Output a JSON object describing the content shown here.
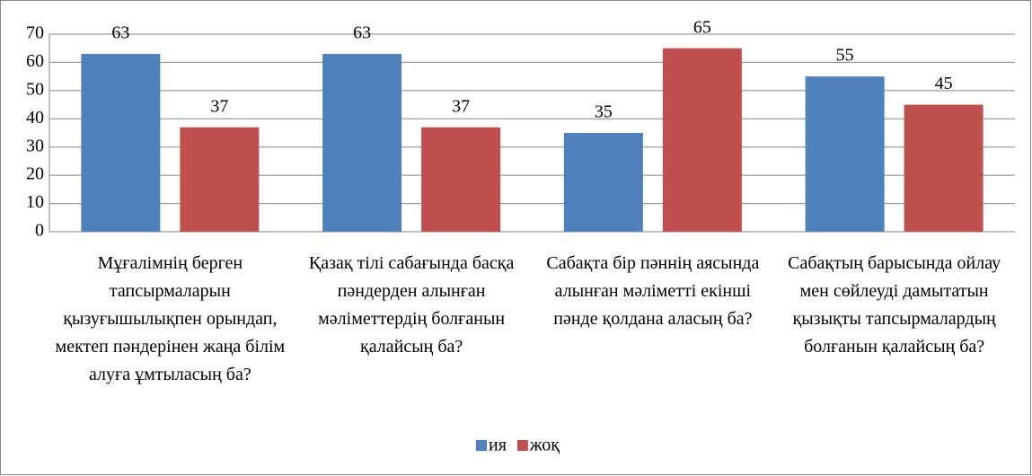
{
  "chart_data": {
    "type": "bar",
    "categories": [
      "Мұғалімнің берген тапсырмаларын қызуғышылықпен орындап, мектеп пәндерінен жаңа білім алуға ұмтыласың ба?",
      "Қазақ тілі сабағында басқа пәндерден алынған мәліметтердің болғанын қалайсың ба?",
      "Сабақта бір пәннің аясында алынған мәліметті екінші пәнде қолдана аласың ба?",
      "Сабақтың барысында ойлау мен сөйлеуді дамытатын қызықты тапсырмалардың болғанын қалайсың ба?"
    ],
    "series": [
      {
        "name": "ия",
        "color": "#4f81bd",
        "values": [
          63,
          63,
          35,
          55
        ]
      },
      {
        "name": "жоқ",
        "color": "#c0504d",
        "values": [
          37,
          37,
          65,
          45
        ]
      }
    ],
    "ylim": [
      0,
      70
    ],
    "yticks": [
      0,
      10,
      20,
      30,
      40,
      50,
      60,
      70
    ],
    "grid": true,
    "legend": "bottom"
  }
}
